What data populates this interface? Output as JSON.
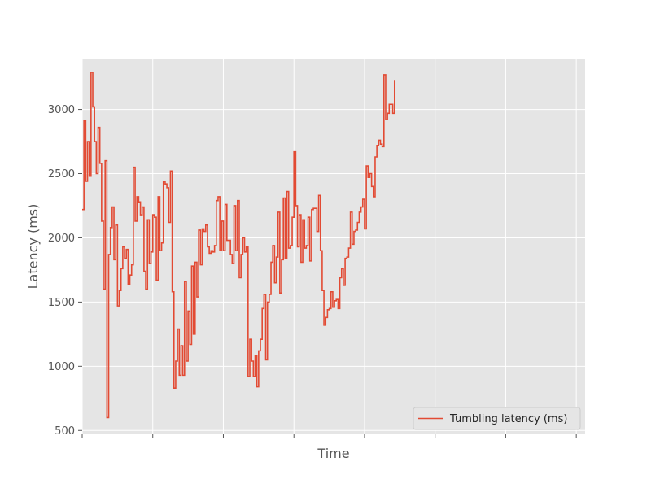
{
  "chart_data": {
    "type": "line",
    "style": "step",
    "title": "",
    "xlabel": "Time",
    "ylabel": "Latency (ms)",
    "xlim": [
      0,
      285
    ],
    "ylim": [
      470,
      3390
    ],
    "yticks": [
      500,
      1000,
      1500,
      2000,
      2500,
      3000
    ],
    "xticks": [
      0,
      40,
      80,
      120,
      160,
      200,
      240,
      280
    ],
    "xtick_labels_visible": false,
    "grid": true,
    "legend": "lower-right",
    "colors": {
      "series": "#E24A33",
      "background": "#E5E5E5",
      "grid": "#FFFFFF"
    },
    "series": [
      {
        "name": "Tumbling latency (ms)",
        "values": [
          2220,
          2910,
          2440,
          2750,
          2480,
          3290,
          3020,
          2750,
          2500,
          2860,
          2580,
          2130,
          1600,
          2600,
          600,
          1870,
          2080,
          2240,
          1830,
          2100,
          1470,
          1590,
          1760,
          1930,
          1840,
          1910,
          1640,
          1710,
          1790,
          2550,
          2130,
          2320,
          2280,
          2180,
          2240,
          1740,
          1600,
          2140,
          1800,
          1890,
          2180,
          2160,
          1670,
          2320,
          1900,
          1960,
          2440,
          2420,
          2390,
          2120,
          2520,
          1580,
          830,
          1040,
          1290,
          930,
          1160,
          930,
          1660,
          1040,
          1430,
          1170,
          1780,
          1250,
          1810,
          1540,
          2060,
          1790,
          2070,
          2050,
          2100,
          1930,
          1880,
          1900,
          1890,
          1940,
          2290,
          2320,
          1900,
          2130,
          1900,
          2260,
          1980,
          1980,
          1870,
          1800,
          2250,
          1900,
          2290,
          1690,
          1870,
          2000,
          1890,
          1930,
          920,
          1210,
          1040,
          920,
          1080,
          840,
          1120,
          1210,
          1450,
          1560,
          1050,
          1500,
          1560,
          1810,
          1940,
          1650,
          1850,
          2200,
          1570,
          1830,
          2310,
          1840,
          2360,
          1920,
          1940,
          2160,
          2670,
          2250,
          1930,
          2180,
          1810,
          2140,
          1920,
          1940,
          2160,
          1820,
          2220,
          2230,
          2230,
          2050,
          2330,
          1900,
          1590,
          1320,
          1380,
          1440,
          1450,
          1580,
          1460,
          1510,
          1520,
          1450,
          1690,
          1760,
          1630,
          1840,
          1850,
          1920,
          2200,
          1950,
          2050,
          2060,
          2120,
          2200,
          2240,
          2300,
          2070,
          2560,
          2470,
          2500,
          2400,
          2320,
          2630,
          2720,
          2760,
          2730,
          2710,
          3270,
          2920,
          2970,
          3040,
          3040,
          2970,
          3230
        ]
      }
    ]
  }
}
